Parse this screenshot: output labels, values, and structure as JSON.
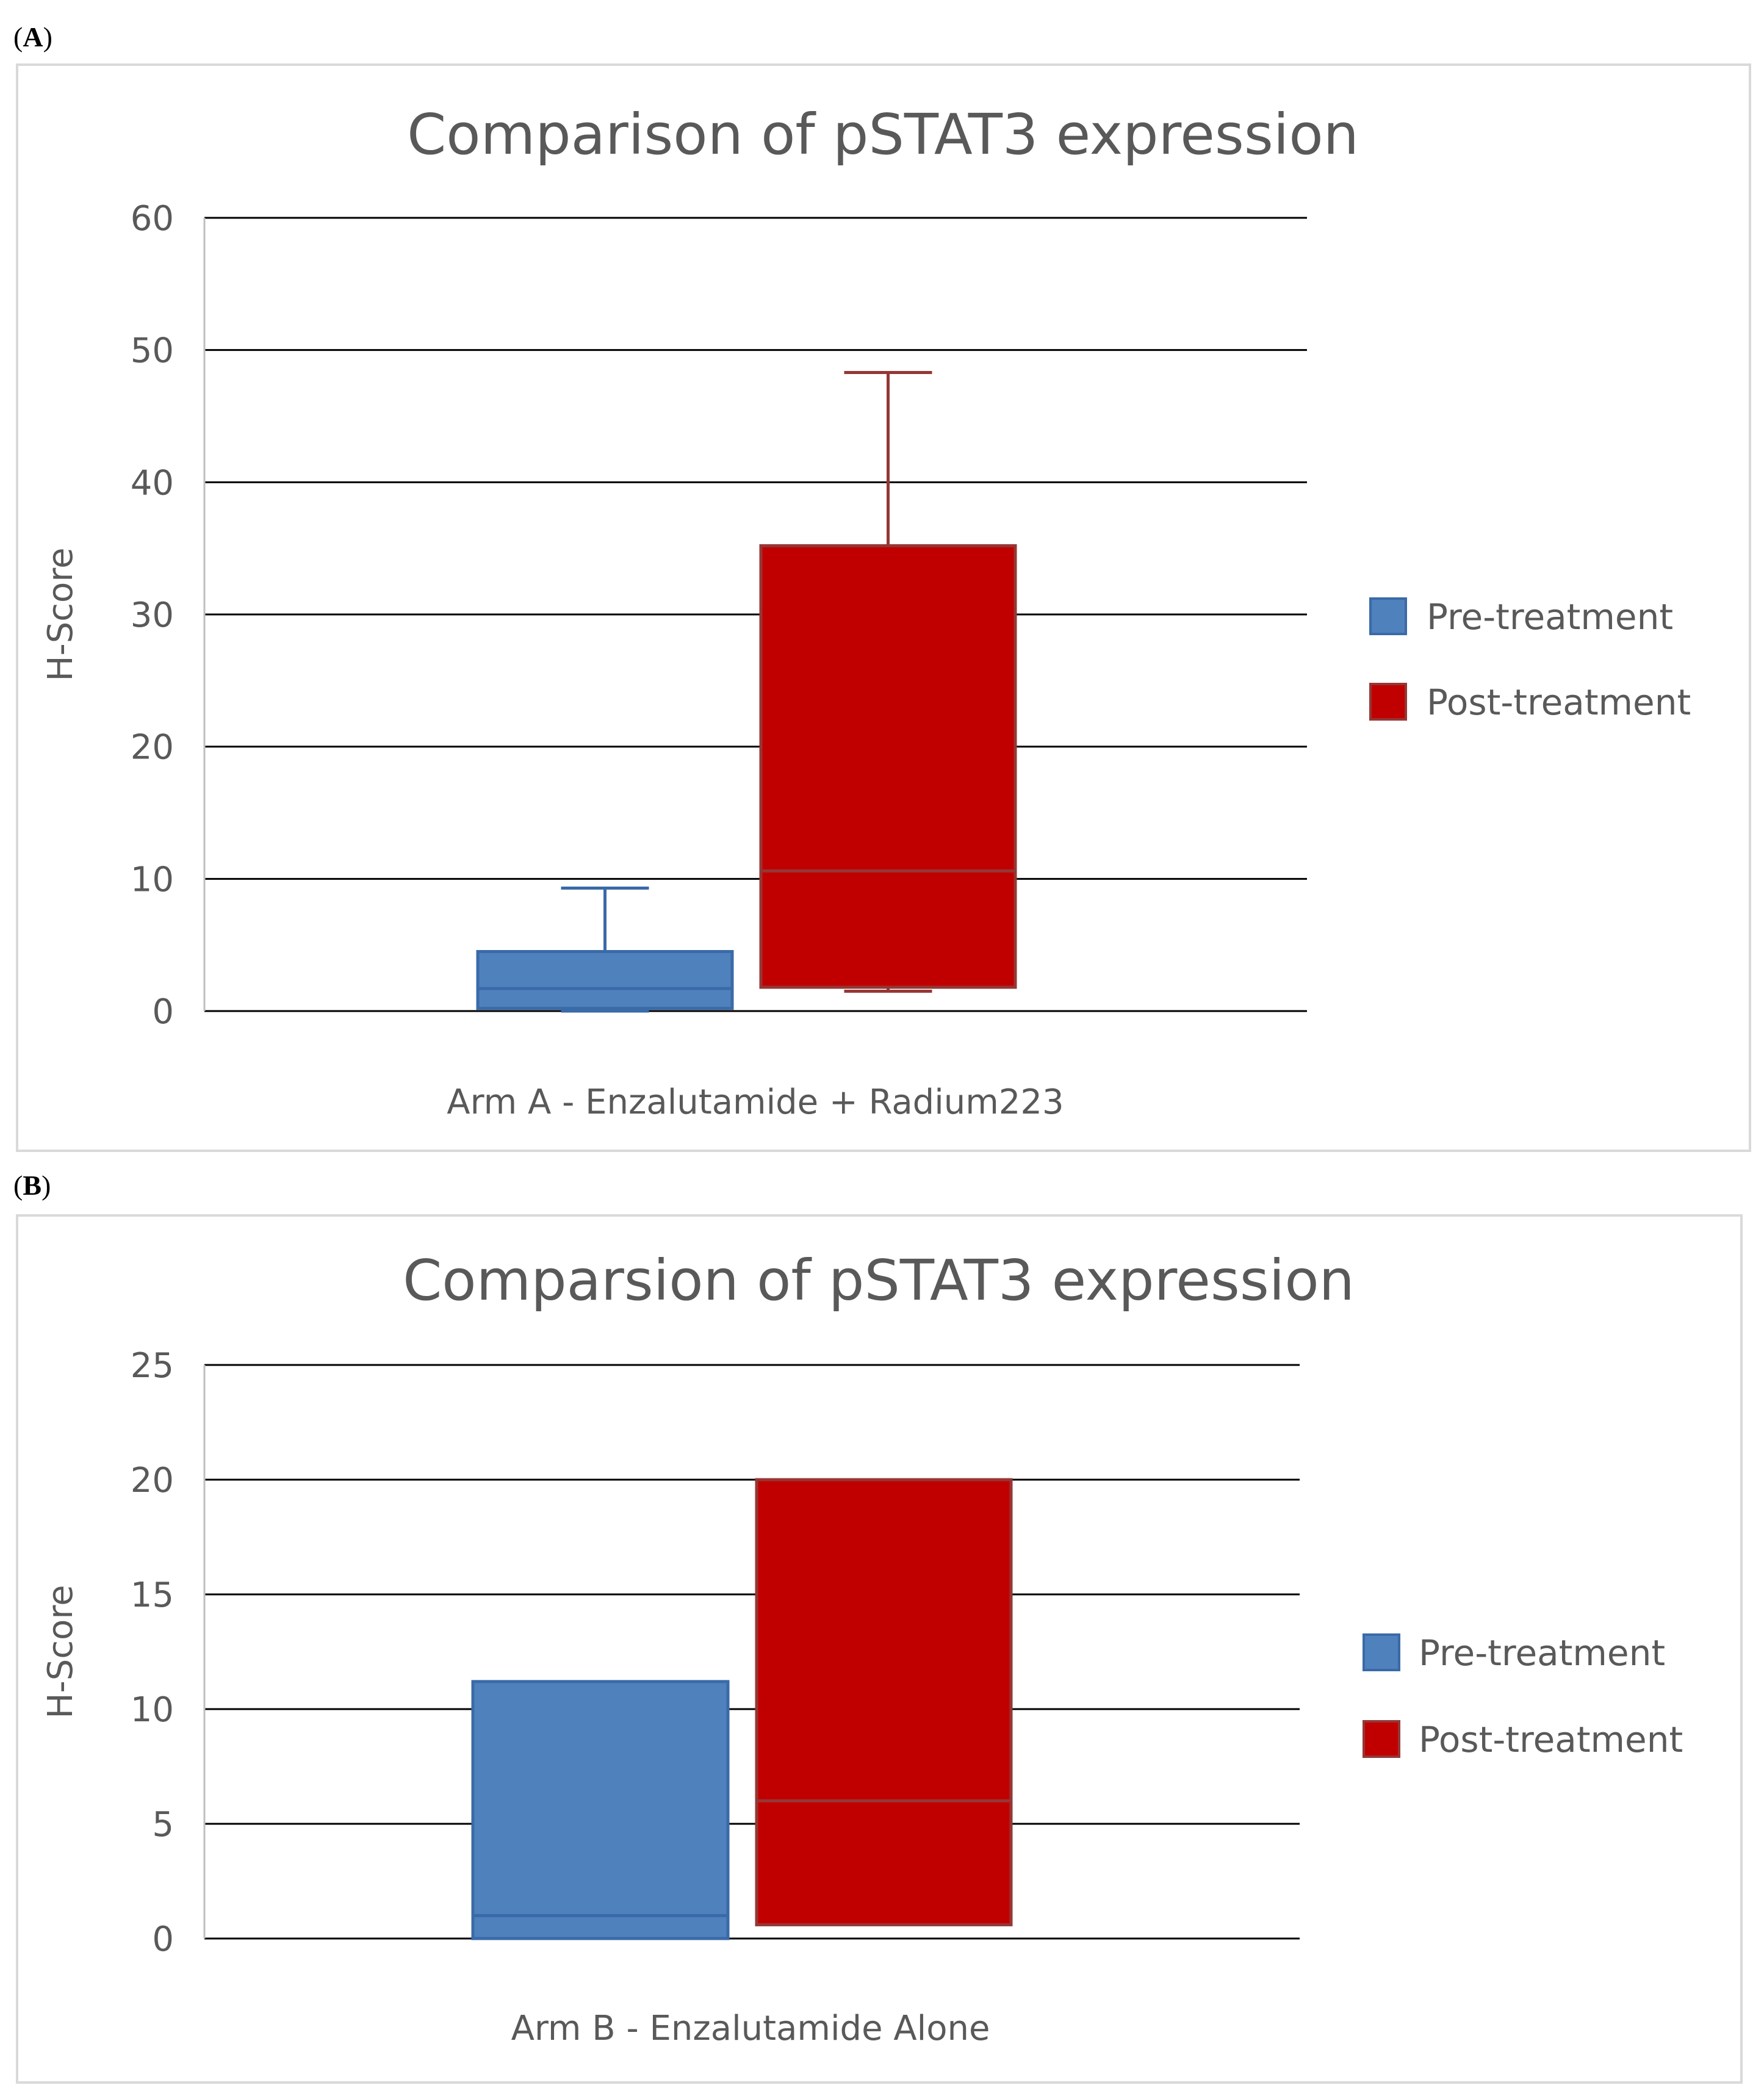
{
  "panels": [
    {
      "label_open": "(",
      "label_letter": "A",
      "label_close": ")"
    },
    {
      "label_open": "(",
      "label_letter": "B",
      "label_close": ")"
    }
  ],
  "colors": {
    "pre": "#4f81bd",
    "pre_border": "#3a6aa8",
    "post": "#c00000",
    "post_border": "#953735",
    "grid": "#000000",
    "text": "#595959"
  },
  "chart_data": [
    {
      "type": "box",
      "title": "Comparison of pSTAT3 expression",
      "ylabel": "H-Score",
      "xlabel": "Arm A - Enzalutamide + Radium223",
      "ylim": [
        0,
        60
      ],
      "yticks": [
        0,
        10,
        20,
        30,
        40,
        50,
        60
      ],
      "grid": true,
      "legend_position": "right",
      "series": [
        {
          "name": "Pre-treatment",
          "min": 0,
          "q1": 0.2,
          "median": 1.7,
          "q3": 4.5,
          "max": 9.3
        },
        {
          "name": "Post-treatment",
          "min": 1.5,
          "q1": 1.8,
          "median": 10.6,
          "q3": 35.2,
          "max": 48.3
        }
      ]
    },
    {
      "type": "box",
      "title": "Comparsion of pSTAT3 expression",
      "ylabel": "H-Score",
      "xlabel": "Arm B - Enzalutamide Alone",
      "ylim": [
        0,
        25
      ],
      "yticks": [
        0,
        5,
        10,
        15,
        20,
        25
      ],
      "grid": true,
      "legend_position": "right",
      "series": [
        {
          "name": "Pre-treatment",
          "min": 0,
          "q1": 0,
          "median": 1,
          "q3": 11.2,
          "max": 11.2
        },
        {
          "name": "Post-treatment",
          "min": 0.6,
          "q1": 0.6,
          "median": 6,
          "q3": 20,
          "max": 20
        }
      ]
    }
  ]
}
